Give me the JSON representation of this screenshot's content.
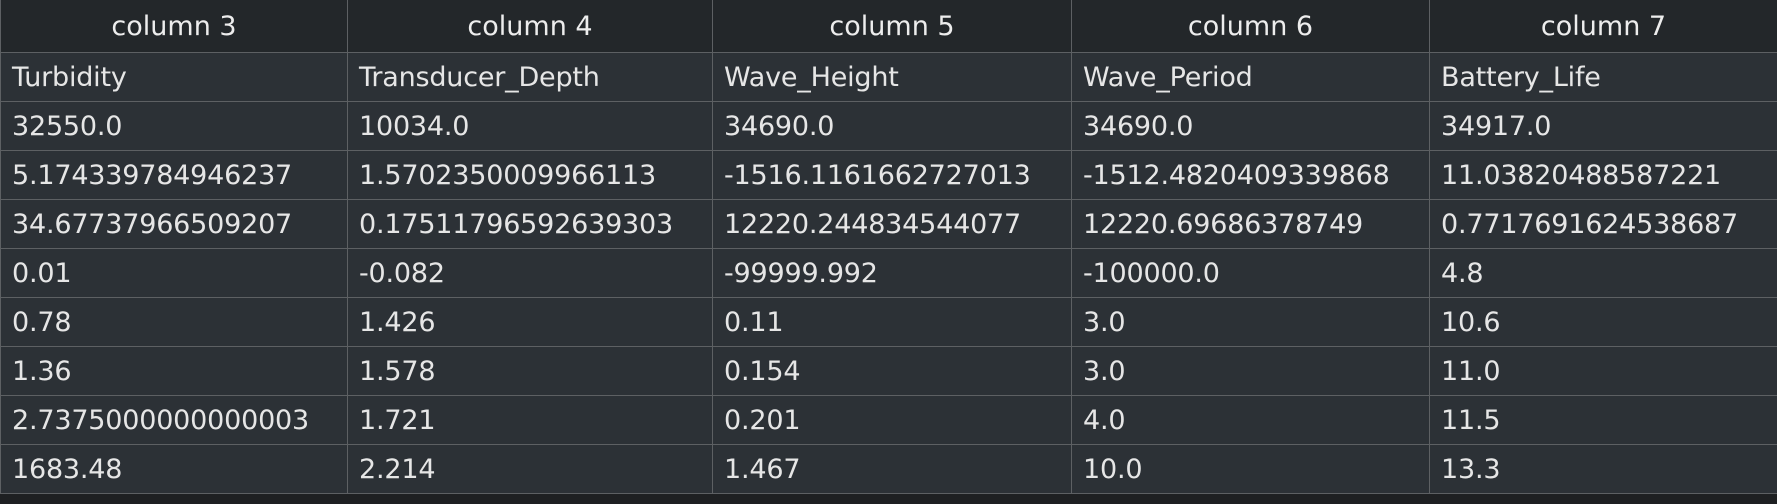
{
  "table": {
    "headers": [
      "column 3",
      "column 4",
      "column 5",
      "column 6",
      "column 7"
    ],
    "rows": [
      [
        "Turbidity",
        "Transducer_Depth",
        "Wave_Height",
        "Wave_Period",
        "Battery_Life"
      ],
      [
        "32550.0",
        "10034.0",
        "34690.0",
        "34690.0",
        "34917.0"
      ],
      [
        "5.174339784946237",
        "1.5702350009966113",
        "-1516.1161662727013",
        "-1512.4820409339868",
        "11.03820488587221"
      ],
      [
        "34.67737966509207",
        "0.17511796592639303",
        "12220.244834544077",
        "12220.69686378749",
        "0.7717691624538687"
      ],
      [
        "0.01",
        "-0.082",
        "-99999.992",
        "-100000.0",
        "4.8"
      ],
      [
        "0.78",
        "1.426",
        "0.11",
        "3.0",
        "10.6"
      ],
      [
        "1.36",
        "1.578",
        "0.154",
        "3.0",
        "11.0"
      ],
      [
        "2.7375000000000003",
        "1.721",
        "0.201",
        "4.0",
        "11.5"
      ],
      [
        "1683.48",
        "2.214",
        "1.467",
        "10.0",
        "13.3"
      ]
    ]
  },
  "colors": {
    "header_background": "#23272a",
    "cell_background": "#2c3136",
    "grid_line": "#5d6063",
    "text": "#e6e6e6"
  }
}
